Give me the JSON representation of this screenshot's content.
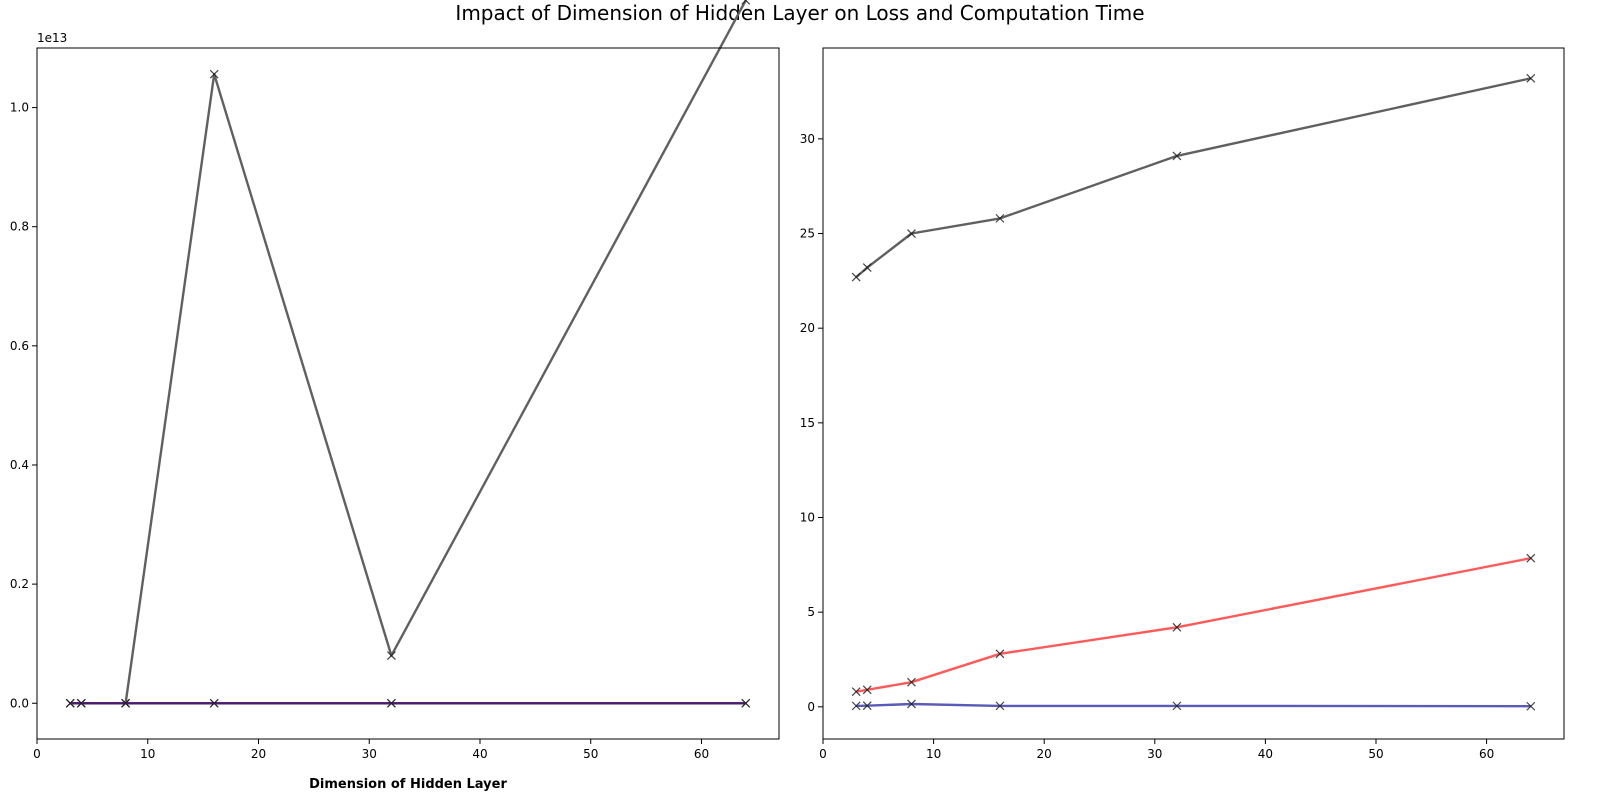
{
  "figure": {
    "title": "Impact of Dimension of Hidden Layer on Loss and Computation Time"
  },
  "chart_data": [
    {
      "type": "line",
      "x": [
        3,
        4,
        8,
        16,
        32,
        64
      ],
      "xlabel": "Dimension of Hidden Layer",
      "ylabel": "",
      "xlim": [
        0,
        67
      ],
      "ylim": [
        -0.06,
        1.1
      ],
      "y_offset_label": "1e13",
      "y_multiplier": 10000000000000.0,
      "x_ticks": [
        0,
        10,
        20,
        30,
        40,
        50,
        60
      ],
      "y_ticks": [
        0.0,
        0.2,
        0.4,
        0.6,
        0.8,
        1.0
      ],
      "y_tick_labels": [
        "0.0",
        "0.2",
        "0.4",
        "0.6",
        "0.8",
        "1.0"
      ],
      "grid": false,
      "series": [
        {
          "values": [
            0.0,
            0.0,
            0.0,
            1.056,
            0.08,
            1.18
          ],
          "color": "#606060",
          "marker": "x"
        },
        {
          "values": [
            0.0,
            0.0,
            0.0,
            0.0,
            0.0,
            0.0
          ],
          "color": "#7a3fa0",
          "marker": "x"
        },
        {
          "values": [
            0.0,
            0.0,
            0.0,
            0.0,
            0.0,
            0.0
          ],
          "color": "#4b1c6e",
          "marker": "x"
        }
      ]
    },
    {
      "type": "line",
      "x": [
        3,
        4,
        8,
        16,
        32,
        64
      ],
      "xlabel": "",
      "ylabel": "",
      "xlim": [
        0,
        67
      ],
      "ylim": [
        -1.7,
        34.8
      ],
      "x_ticks": [
        0,
        10,
        20,
        30,
        40,
        50,
        60
      ],
      "y_ticks": [
        0,
        5,
        10,
        15,
        20,
        25,
        30
      ],
      "y_tick_labels": [
        "0",
        "5",
        "10",
        "15",
        "20",
        "25",
        "30"
      ],
      "grid": false,
      "series": [
        {
          "values": [
            22.7,
            23.2,
            25.0,
            25.8,
            29.1,
            33.2
          ],
          "color": "#606060",
          "marker": "x"
        },
        {
          "values": [
            0.8,
            0.9,
            1.3,
            2.8,
            4.2,
            7.85
          ],
          "color": "#ff5a5a",
          "marker": "x"
        },
        {
          "values": [
            0.05,
            0.06,
            0.15,
            0.05,
            0.05,
            0.03
          ],
          "color": "#5a5ab8",
          "marker": "x"
        }
      ]
    }
  ]
}
